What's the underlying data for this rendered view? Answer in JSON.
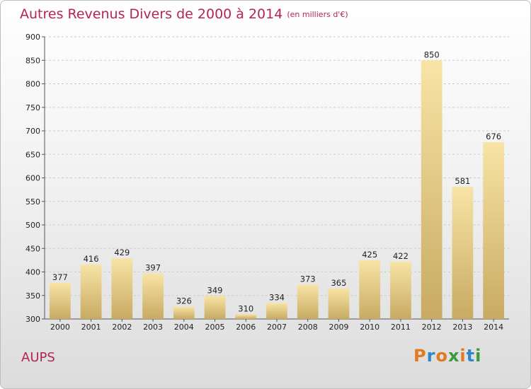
{
  "title": "Autres Revenus Divers de 2000 à 2014",
  "subtitle": "(en milliers d'€)",
  "commune": "AUPS",
  "logo": {
    "text": "Proxiti",
    "letters": [
      "P",
      "r",
      "o",
      "x",
      "i",
      "t",
      "i"
    ],
    "colors": [
      "#e07b22",
      "#2f86c8",
      "#e07b22",
      "#3a9a3c",
      "#e07b22",
      "#2f86c8",
      "#3a9a3c"
    ]
  },
  "colors": {
    "title": "#b3245a",
    "bar_light": "#f8e4a6",
    "bar_dark": "#c8aa62",
    "grid": "#cccccc"
  },
  "chart_data": {
    "type": "bar",
    "categories": [
      "2000",
      "2001",
      "2002",
      "2003",
      "2004",
      "2005",
      "2006",
      "2007",
      "2008",
      "2009",
      "2010",
      "2011",
      "2012",
      "2013",
      "2014"
    ],
    "values": [
      377,
      416,
      429,
      397,
      326,
      349,
      310,
      334,
      373,
      365,
      425,
      422,
      850,
      581,
      676
    ],
    "yticks": [
      300,
      350,
      400,
      450,
      500,
      550,
      600,
      650,
      700,
      750,
      800,
      850,
      900
    ],
    "ylim": [
      300,
      900
    ],
    "grid": true,
    "xlabel": "",
    "ylabel": ""
  }
}
